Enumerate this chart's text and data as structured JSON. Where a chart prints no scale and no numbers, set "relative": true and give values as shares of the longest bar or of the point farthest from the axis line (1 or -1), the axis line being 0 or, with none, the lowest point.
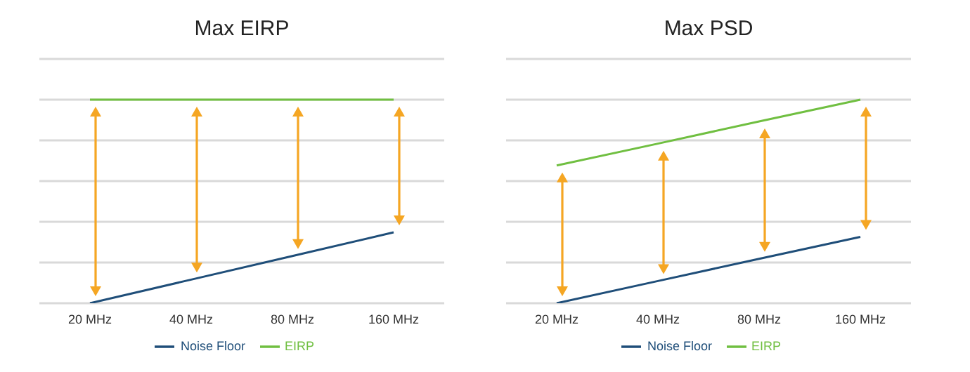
{
  "chart_data": [
    {
      "type": "line",
      "title": "Max EIRP",
      "categories": [
        "20 MHz",
        "40 MHz",
        "80 MHz",
        "160 MHz"
      ],
      "relative": true,
      "grid": "y",
      "legend": "bottom",
      "marker": "none",
      "series": [
        {
          "name": "Noise Floor",
          "color": "#1f4e79",
          "values": [
            0,
            0.116,
            0.232,
            0.348
          ]
        },
        {
          "name": "EIRP",
          "color": "#70bf41",
          "values": [
            1,
            1,
            1,
            1
          ]
        }
      ]
    },
    {
      "type": "line",
      "title": "Max PSD",
      "categories": [
        "20 MHz",
        "40 MHz",
        "80 MHz",
        "160 MHz"
      ],
      "relative": true,
      "grid": "y",
      "legend": "bottom",
      "marker": "none",
      "series": [
        {
          "name": "Noise Floor",
          "color": "#1f4e79",
          "values": [
            0,
            0.109,
            0.218,
            0.326
          ]
        },
        {
          "name": "EIRP",
          "color": "#70bf41",
          "values": [
            0.677,
            0.784,
            0.893,
            1
          ]
        }
      ]
    }
  ]
}
